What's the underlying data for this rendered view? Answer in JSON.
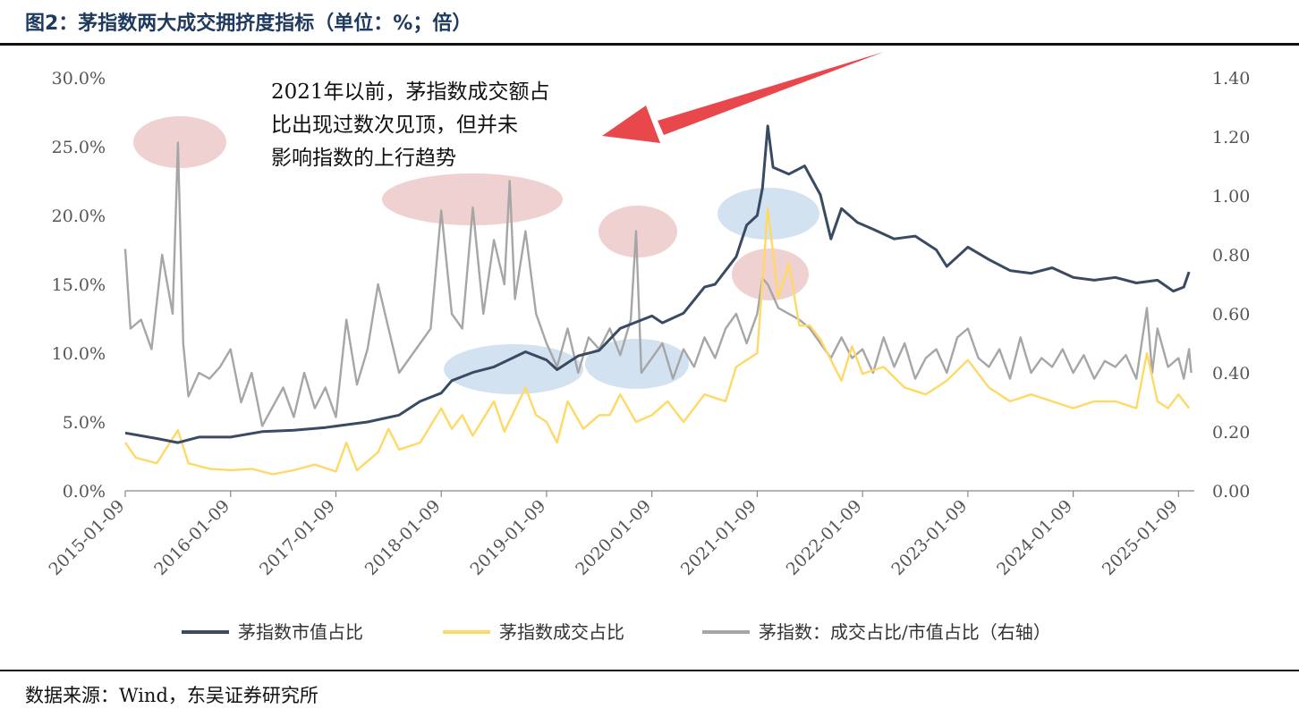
{
  "title": "图2：茅指数两大成交拥挤度指标（单位：%；倍）",
  "source": "数据来源：Wind，东吴证券研究所",
  "colors": {
    "market_cap_share": "#3b4a63",
    "turnover_share": "#ffd966",
    "ratio": "#a6a6a6",
    "axis": "#888888",
    "highlight_red": "#e8b8b8",
    "highlight_blue": "#bcd3ea",
    "arrow": "#e8484c"
  },
  "chart_data": {
    "type": "line",
    "x_ticks": [
      "2015-01-09",
      "2016-01-09",
      "2017-01-09",
      "2018-01-09",
      "2019-01-09",
      "2020-01-09",
      "2021-01-09",
      "2022-01-09",
      "2023-01-09",
      "2024-01-09",
      "2025-01-09"
    ],
    "y_left": {
      "min": 0,
      "max": 30,
      "ticks": [
        "0.0%",
        "5.0%",
        "10.0%",
        "15.0%",
        "20.0%",
        "25.0%",
        "30.0%"
      ]
    },
    "y_right": {
      "min": 0,
      "max": 1.4,
      "ticks": [
        "0.00",
        "0.20",
        "0.40",
        "0.60",
        "0.80",
        "1.00",
        "1.20",
        "1.40"
      ]
    },
    "series": [
      {
        "name": "茅指数市值占比",
        "axis": "left",
        "color": "#3b4a63",
        "points": [
          [
            2015.0,
            4.2
          ],
          [
            2015.3,
            3.8
          ],
          [
            2015.5,
            3.5
          ],
          [
            2015.7,
            3.9
          ],
          [
            2015.9,
            3.9
          ],
          [
            2016.0,
            3.9
          ],
          [
            2016.3,
            4.3
          ],
          [
            2016.6,
            4.4
          ],
          [
            2016.9,
            4.6
          ],
          [
            2017.0,
            4.7
          ],
          [
            2017.3,
            5.0
          ],
          [
            2017.6,
            5.5
          ],
          [
            2017.8,
            6.5
          ],
          [
            2018.0,
            7.1
          ],
          [
            2018.1,
            8.0
          ],
          [
            2018.3,
            8.6
          ],
          [
            2018.5,
            9.0
          ],
          [
            2018.8,
            10.1
          ],
          [
            2019.0,
            9.5
          ],
          [
            2019.1,
            8.8
          ],
          [
            2019.3,
            9.8
          ],
          [
            2019.5,
            10.2
          ],
          [
            2019.7,
            11.8
          ],
          [
            2019.9,
            12.4
          ],
          [
            2020.0,
            12.7
          ],
          [
            2020.1,
            12.2
          ],
          [
            2020.3,
            12.9
          ],
          [
            2020.5,
            14.8
          ],
          [
            2020.6,
            15.0
          ],
          [
            2020.8,
            17.0
          ],
          [
            2020.9,
            19.3
          ],
          [
            2021.0,
            20.0
          ],
          [
            2021.05,
            22.0
          ],
          [
            2021.1,
            26.5
          ],
          [
            2021.15,
            23.5
          ],
          [
            2021.3,
            23.0
          ],
          [
            2021.45,
            23.6
          ],
          [
            2021.6,
            21.5
          ],
          [
            2021.7,
            18.3
          ],
          [
            2021.8,
            20.5
          ],
          [
            2021.95,
            19.5
          ],
          [
            2022.1,
            19.0
          ],
          [
            2022.3,
            18.3
          ],
          [
            2022.5,
            18.5
          ],
          [
            2022.7,
            17.5
          ],
          [
            2022.8,
            16.3
          ],
          [
            2022.9,
            17.0
          ],
          [
            2023.0,
            17.7
          ],
          [
            2023.2,
            16.8
          ],
          [
            2023.4,
            16.0
          ],
          [
            2023.6,
            15.8
          ],
          [
            2023.8,
            16.2
          ],
          [
            2024.0,
            15.5
          ],
          [
            2024.2,
            15.3
          ],
          [
            2024.4,
            15.5
          ],
          [
            2024.6,
            15.1
          ],
          [
            2024.8,
            15.3
          ],
          [
            2024.95,
            14.5
          ],
          [
            2025.05,
            14.8
          ],
          [
            2025.1,
            15.9
          ]
        ]
      },
      {
        "name": "茅指数成交占比",
        "axis": "left",
        "color": "#ffd966",
        "points": [
          [
            2015.0,
            3.5
          ],
          [
            2015.1,
            2.4
          ],
          [
            2015.3,
            2.0
          ],
          [
            2015.5,
            4.4
          ],
          [
            2015.6,
            2.0
          ],
          [
            2015.8,
            1.6
          ],
          [
            2016.0,
            1.5
          ],
          [
            2016.2,
            1.6
          ],
          [
            2016.4,
            1.2
          ],
          [
            2016.6,
            1.5
          ],
          [
            2016.8,
            1.9
          ],
          [
            2017.0,
            1.4
          ],
          [
            2017.1,
            3.5
          ],
          [
            2017.2,
            1.5
          ],
          [
            2017.4,
            2.8
          ],
          [
            2017.5,
            4.5
          ],
          [
            2017.6,
            3.0
          ],
          [
            2017.8,
            3.5
          ],
          [
            2018.0,
            6.0
          ],
          [
            2018.1,
            4.5
          ],
          [
            2018.2,
            5.5
          ],
          [
            2018.3,
            4.0
          ],
          [
            2018.5,
            6.5
          ],
          [
            2018.6,
            4.3
          ],
          [
            2018.8,
            7.5
          ],
          [
            2018.9,
            5.5
          ],
          [
            2019.0,
            5.0
          ],
          [
            2019.1,
            3.5
          ],
          [
            2019.2,
            6.5
          ],
          [
            2019.35,
            4.5
          ],
          [
            2019.5,
            5.5
          ],
          [
            2019.6,
            5.5
          ],
          [
            2019.7,
            7.0
          ],
          [
            2019.85,
            5.0
          ],
          [
            2020.0,
            5.5
          ],
          [
            2020.15,
            6.5
          ],
          [
            2020.3,
            5.0
          ],
          [
            2020.5,
            7.0
          ],
          [
            2020.7,
            6.5
          ],
          [
            2020.8,
            9.0
          ],
          [
            2020.9,
            9.5
          ],
          [
            2021.0,
            10.0
          ],
          [
            2021.1,
            20.5
          ],
          [
            2021.2,
            14.0
          ],
          [
            2021.3,
            16.5
          ],
          [
            2021.4,
            12.0
          ],
          [
            2021.5,
            12.0
          ],
          [
            2021.6,
            11.0
          ],
          [
            2021.7,
            9.5
          ],
          [
            2021.8,
            8.0
          ],
          [
            2021.9,
            10.5
          ],
          [
            2022.0,
            8.5
          ],
          [
            2022.2,
            9.0
          ],
          [
            2022.4,
            7.5
          ],
          [
            2022.6,
            7.0
          ],
          [
            2022.8,
            8.0
          ],
          [
            2023.0,
            9.5
          ],
          [
            2023.2,
            7.5
          ],
          [
            2023.4,
            6.5
          ],
          [
            2023.6,
            7.0
          ],
          [
            2023.8,
            6.5
          ],
          [
            2024.0,
            6.0
          ],
          [
            2024.2,
            6.5
          ],
          [
            2024.4,
            6.5
          ],
          [
            2024.6,
            6.0
          ],
          [
            2024.7,
            10.0
          ],
          [
            2024.8,
            6.5
          ],
          [
            2024.9,
            6.0
          ],
          [
            2025.0,
            7.0
          ],
          [
            2025.1,
            6.0
          ]
        ]
      },
      {
        "name": "茅指数：成交占比/市值占比（右轴）",
        "axis": "right",
        "color": "#a6a6a6",
        "points": [
          [
            2015.0,
            0.82
          ],
          [
            2015.05,
            0.55
          ],
          [
            2015.15,
            0.58
          ],
          [
            2015.25,
            0.48
          ],
          [
            2015.35,
            0.8
          ],
          [
            2015.45,
            0.6
          ],
          [
            2015.5,
            1.18
          ],
          [
            2015.55,
            0.5
          ],
          [
            2015.6,
            0.32
          ],
          [
            2015.7,
            0.4
          ],
          [
            2015.8,
            0.38
          ],
          [
            2015.9,
            0.42
          ],
          [
            2016.0,
            0.48
          ],
          [
            2016.1,
            0.3
          ],
          [
            2016.2,
            0.4
          ],
          [
            2016.3,
            0.22
          ],
          [
            2016.5,
            0.35
          ],
          [
            2016.6,
            0.25
          ],
          [
            2016.7,
            0.4
          ],
          [
            2016.8,
            0.28
          ],
          [
            2016.9,
            0.35
          ],
          [
            2017.0,
            0.25
          ],
          [
            2017.1,
            0.58
          ],
          [
            2017.2,
            0.36
          ],
          [
            2017.3,
            0.48
          ],
          [
            2017.4,
            0.7
          ],
          [
            2017.5,
            0.55
          ],
          [
            2017.6,
            0.4
          ],
          [
            2017.7,
            0.45
          ],
          [
            2017.8,
            0.5
          ],
          [
            2017.9,
            0.55
          ],
          [
            2018.0,
            0.95
          ],
          [
            2018.1,
            0.6
          ],
          [
            2018.2,
            0.55
          ],
          [
            2018.3,
            0.96
          ],
          [
            2018.4,
            0.6
          ],
          [
            2018.5,
            0.85
          ],
          [
            2018.6,
            0.7
          ],
          [
            2018.65,
            1.05
          ],
          [
            2018.7,
            0.65
          ],
          [
            2018.8,
            0.88
          ],
          [
            2018.9,
            0.6
          ],
          [
            2019.0,
            0.5
          ],
          [
            2019.1,
            0.42
          ],
          [
            2019.2,
            0.55
          ],
          [
            2019.3,
            0.4
          ],
          [
            2019.4,
            0.52
          ],
          [
            2019.5,
            0.48
          ],
          [
            2019.6,
            0.55
          ],
          [
            2019.7,
            0.46
          ],
          [
            2019.8,
            0.58
          ],
          [
            2019.85,
            0.88
          ],
          [
            2019.9,
            0.4
          ],
          [
            2020.0,
            0.45
          ],
          [
            2020.1,
            0.5
          ],
          [
            2020.2,
            0.38
          ],
          [
            2020.3,
            0.48
          ],
          [
            2020.4,
            0.42
          ],
          [
            2020.5,
            0.52
          ],
          [
            2020.6,
            0.45
          ],
          [
            2020.7,
            0.55
          ],
          [
            2020.8,
            0.6
          ],
          [
            2020.9,
            0.5
          ],
          [
            2021.0,
            0.6
          ],
          [
            2021.05,
            0.72
          ],
          [
            2021.1,
            0.7
          ],
          [
            2021.2,
            0.62
          ],
          [
            2021.3,
            0.6
          ],
          [
            2021.4,
            0.58
          ],
          [
            2021.5,
            0.55
          ],
          [
            2021.6,
            0.5
          ],
          [
            2021.7,
            0.45
          ],
          [
            2021.8,
            0.52
          ],
          [
            2021.9,
            0.45
          ],
          [
            2022.0,
            0.48
          ],
          [
            2022.1,
            0.4
          ],
          [
            2022.2,
            0.52
          ],
          [
            2022.3,
            0.42
          ],
          [
            2022.4,
            0.5
          ],
          [
            2022.5,
            0.38
          ],
          [
            2022.6,
            0.45
          ],
          [
            2022.7,
            0.48
          ],
          [
            2022.8,
            0.4
          ],
          [
            2022.9,
            0.52
          ],
          [
            2023.0,
            0.55
          ],
          [
            2023.1,
            0.45
          ],
          [
            2023.2,
            0.42
          ],
          [
            2023.3,
            0.48
          ],
          [
            2023.4,
            0.38
          ],
          [
            2023.5,
            0.52
          ],
          [
            2023.6,
            0.4
          ],
          [
            2023.7,
            0.45
          ],
          [
            2023.8,
            0.42
          ],
          [
            2023.9,
            0.48
          ],
          [
            2024.0,
            0.4
          ],
          [
            2024.1,
            0.46
          ],
          [
            2024.2,
            0.38
          ],
          [
            2024.3,
            0.44
          ],
          [
            2024.4,
            0.42
          ],
          [
            2024.5,
            0.46
          ],
          [
            2024.6,
            0.38
          ],
          [
            2024.7,
            0.62
          ],
          [
            2024.75,
            0.4
          ],
          [
            2024.8,
            0.55
          ],
          [
            2024.9,
            0.42
          ],
          [
            2025.0,
            0.45
          ],
          [
            2025.05,
            0.38
          ],
          [
            2025.1,
            0.48
          ],
          [
            2025.12,
            0.4
          ]
        ]
      }
    ],
    "annotation": "2021年以前，茅指数成交额占比出现过数次见顶，但并未影响指数的上行趋势",
    "legend_position": "bottom",
    "grid": false
  }
}
